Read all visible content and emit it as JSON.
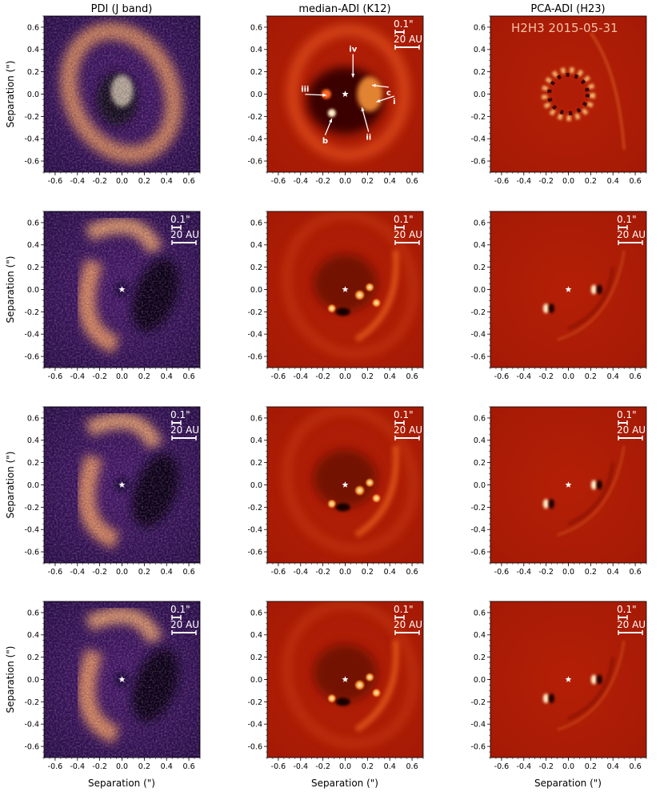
{
  "column_titles": [
    "PDI (J band)",
    "median-ADI (K12)",
    "PCA-ADI (H23)"
  ],
  "y_axis_label": "Separation (\")",
  "x_axis_label": "Separation (\")",
  "x_tick_labels": [
    "-0.6",
    "-0.4",
    "-0.2",
    "0.0",
    "0.2",
    "0.4",
    "0.6"
  ],
  "y_tick_labels": [
    "0.6",
    "0.4",
    "0.2",
    "0.0",
    "-0.2",
    "-0.4",
    "-0.6"
  ],
  "scale_bar": {
    "angular": "0.1\"",
    "physical": "20 AU"
  },
  "epoch_label": "H2H3 2015-05-31",
  "annotations": [
    "iv",
    "iii",
    "c",
    "i",
    "ii",
    "b"
  ],
  "colors": {
    "pdi_colormap": "magma",
    "adi_colormap": "red-hot",
    "text": "#ffffff"
  },
  "chart_data": {
    "type": "image-grid",
    "rows": 4,
    "columns": [
      "PDI (J band)",
      "median-ADI (K12)",
      "PCA-ADI (H23)"
    ],
    "xlim": [
      -0.7,
      0.7
    ],
    "ylim": [
      -0.7,
      0.7
    ],
    "x_ticks": [
      -0.6,
      -0.4,
      -0.2,
      0.0,
      0.2,
      0.4,
      0.6
    ],
    "y_ticks": [
      0.6,
      0.4,
      0.2,
      0.0,
      -0.2,
      -0.4,
      -0.6
    ],
    "star_position": [
      0.0,
      0.0
    ]
  }
}
